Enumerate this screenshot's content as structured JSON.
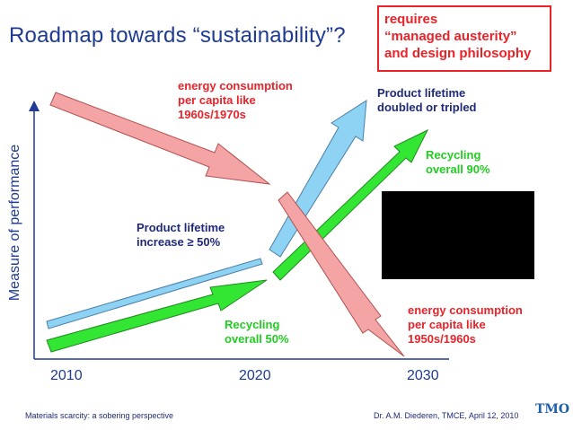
{
  "title": "Roadmap towards “sustainability”?",
  "callout": {
    "lines": [
      "requires",
      "“managed austerity”",
      "and design philosophy"
    ]
  },
  "axis": {
    "y_label": "Measure of performance",
    "x_ticks": [
      "2010",
      "2020",
      "2030"
    ]
  },
  "labels": {
    "energy_1960": [
      "energy consumption",
      "per capita like",
      "1960s/1970s"
    ],
    "product_doubled": [
      "Product lifetime",
      "doubled or tripled"
    ],
    "recycling_90": [
      "Recycling",
      "overall 90%"
    ],
    "product_50": [
      "Product lifetime",
      "increase ≥ 50%"
    ],
    "recycling_50": [
      "Recycling",
      "overall 50%"
    ],
    "energy_1950": [
      "energy consumption",
      "per capita like",
      "1950s/1960s"
    ]
  },
  "footer": {
    "left": "Materials scarcity: a sobering perspective",
    "right": "Dr. A.M. Diederen, TMCE, April 12, 2010",
    "logo": "TMO"
  },
  "colors": {
    "red_arrow": "#f4a4a4",
    "blue_arrow": "#8fd3f4",
    "green_arrow": "#33e633",
    "accent_red": "#e8232a",
    "navy": "#1f2a7a"
  }
}
